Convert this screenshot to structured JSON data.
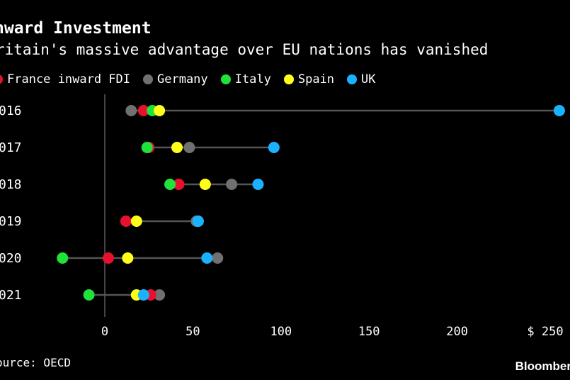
{
  "header": {
    "title": "nward Investment",
    "subtitle": "ritain's massive advantage over EU nations has vanished"
  },
  "footer": {
    "source": "ource: OECD",
    "brand": "Bloomber"
  },
  "colors": {
    "background": "#000000",
    "connector": "#555555",
    "axis": "#888888",
    "France": "#e8112d",
    "Germany": "#707070",
    "Italy": "#1ee33a",
    "Spain": "#ffff1a",
    "UK": "#1ab2ff"
  },
  "chart_data": {
    "type": "dumbbell",
    "title": "nward Investment",
    "subtitle": "ritain's massive advantage over EU nations has vanished",
    "categories": [
      "016",
      "017",
      "018",
      "019",
      "020",
      "021"
    ],
    "x_ticks": [
      0,
      50,
      100,
      150,
      200,
      250
    ],
    "x_tick_labels": [
      "0",
      "50",
      "100",
      "150",
      "200",
      "$ 250"
    ],
    "xlim": [
      -30,
      260
    ],
    "grid": false,
    "legend_position": "top",
    "series": [
      {
        "name": "France inward FDI",
        "key": "France",
        "values": [
          22,
          25,
          42,
          12,
          2,
          26
        ]
      },
      {
        "name": "Germany",
        "key": "Germany",
        "values": [
          15,
          48,
          72,
          52,
          64,
          31
        ]
      },
      {
        "name": "Italy",
        "key": "Italy",
        "values": [
          27,
          24,
          37,
          53,
          -24,
          -9
        ]
      },
      {
        "name": "Spain",
        "key": "Spain",
        "values": [
          31,
          41,
          57,
          18,
          13,
          18
        ]
      },
      {
        "name": "UK",
        "key": "UK",
        "values": [
          258,
          96,
          87,
          53,
          58,
          22
        ]
      }
    ]
  }
}
